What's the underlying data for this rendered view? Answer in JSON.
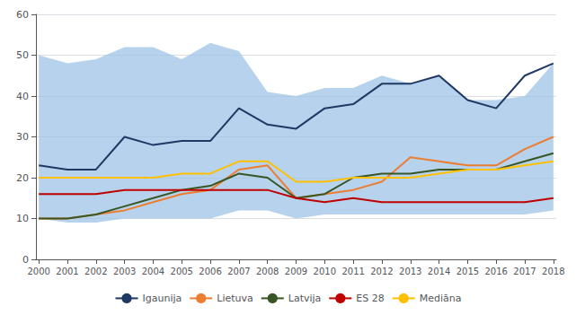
{
  "chart_data": {
    "type": "line",
    "x": [
      2000,
      2001,
      2002,
      2003,
      2004,
      2005,
      2006,
      2007,
      2008,
      2009,
      2010,
      2011,
      2012,
      2013,
      2014,
      2015,
      2016,
      2017,
      2018
    ],
    "series": [
      {
        "type": "band",
        "color": "#9dc3e6",
        "lower": [
          10,
          9,
          9,
          10,
          10,
          10,
          10,
          12,
          12,
          10,
          11,
          11,
          11,
          11,
          11,
          11,
          11,
          11,
          12
        ],
        "upper": [
          50,
          48,
          49,
          52,
          52,
          49,
          53,
          51,
          41,
          40,
          42,
          42,
          45,
          43,
          45,
          39,
          39,
          40,
          48
        ]
      },
      {
        "name": "Igaunija",
        "color": "#1f3864",
        "values": [
          23,
          22,
          22,
          30,
          28,
          29,
          29,
          37,
          33,
          32,
          37,
          38,
          43,
          43,
          45,
          39,
          37,
          45,
          48
        ]
      },
      {
        "name": "Lietuva",
        "color": "#ed7d31",
        "values": [
          10,
          10,
          11,
          12,
          14,
          16,
          17,
          22,
          23,
          15,
          16,
          17,
          19,
          25,
          24,
          23,
          23,
          27,
          30
        ]
      },
      {
        "name": "Latvija",
        "color": "#375623",
        "values": [
          10,
          10,
          11,
          13,
          15,
          17,
          18,
          21,
          20,
          15,
          16,
          20,
          21,
          21,
          22,
          22,
          22,
          24,
          26
        ]
      },
      {
        "name": "ES 28",
        "color": "#c00000",
        "values": [
          16,
          16,
          16,
          17,
          17,
          17,
          17,
          17,
          17,
          15,
          14,
          15,
          14,
          14,
          14,
          14,
          14,
          14,
          15
        ]
      },
      {
        "name": "Mediāna",
        "color": "#ffc000",
        "values": [
          20,
          20,
          20,
          20,
          20,
          21,
          21,
          24,
          24,
          19,
          19,
          20,
          20,
          20,
          21,
          22,
          22,
          23,
          24
        ]
      }
    ],
    "xlim": [
      1999.9,
      2018.1
    ],
    "xticks": [
      2000,
      2001,
      2002,
      2003,
      2004,
      2005,
      2006,
      2007,
      2008,
      2009,
      2010,
      2011,
      2012,
      2013,
      2014,
      2015,
      2016,
      2017,
      2018
    ],
    "ylim": [
      0,
      60
    ],
    "yticks": [
      0,
      10,
      20,
      30,
      40,
      50,
      60
    ],
    "grid": true,
    "legend": "bottom"
  }
}
